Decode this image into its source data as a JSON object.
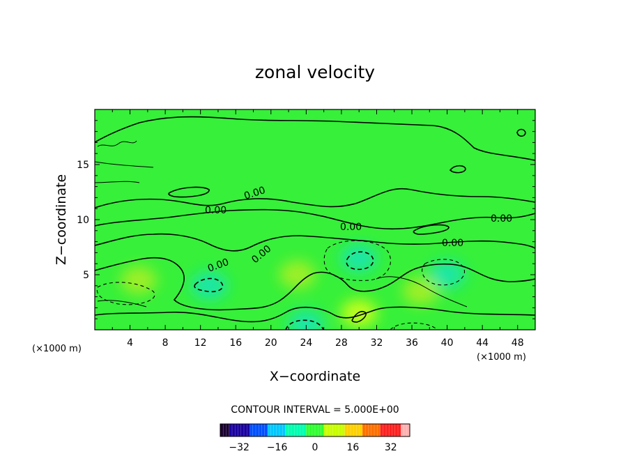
{
  "chart_data": {
    "type": "heatmap",
    "title": "zonal velocity",
    "xlabel": "X−coordinate",
    "ylabel": "Z−coordinate",
    "x_unit_left": "(×1000 m)",
    "x_unit_right": "(×1000 m)",
    "xlim": [
      0,
      50
    ],
    "ylim": [
      0,
      20
    ],
    "x_ticks": [
      4,
      8,
      12,
      16,
      20,
      24,
      28,
      32,
      36,
      40,
      44,
      48
    ],
    "y_ticks": [
      5,
      10,
      15
    ],
    "contour_interval_text": "CONTOUR INTERVAL = 5.000E+00",
    "contour_labels": [
      "0.00",
      "0.00",
      "0.00",
      "0.00",
      "0.00",
      "0.00",
      "0.00"
    ],
    "colorbar": {
      "min": -40,
      "max": 40,
      "ticks": [
        -32,
        -16,
        0,
        16,
        32
      ],
      "colors": [
        "#1a0030",
        "#1a00a0",
        "#0050ff",
        "#00c8ff",
        "#00ffb0",
        "#30ff30",
        "#c8ff00",
        "#ffd000",
        "#ff7000",
        "#ff2020",
        "#ffb0b0"
      ]
    },
    "field_features": [
      {
        "x": 13,
        "z": 4,
        "value": -8
      },
      {
        "x": 24,
        "z": 0.5,
        "value": -8
      },
      {
        "x": 30,
        "z": 6.5,
        "value": -7
      },
      {
        "x": 40,
        "z": 5,
        "value": -5
      },
      {
        "x": 5,
        "z": 4.5,
        "value": 9
      },
      {
        "x": 23,
        "z": 5,
        "value": 8
      },
      {
        "x": 37,
        "z": 3.5,
        "value": 9
      },
      {
        "x": 30,
        "z": 1.5,
        "value": 12
      }
    ]
  }
}
